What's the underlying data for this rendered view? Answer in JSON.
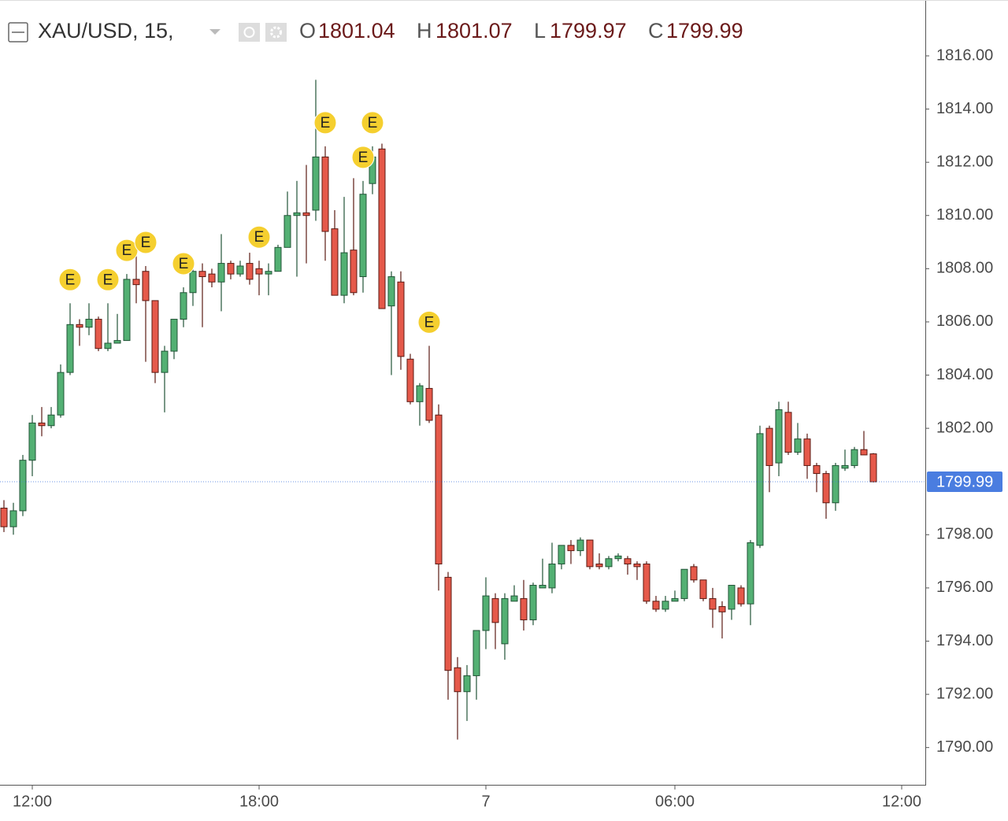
{
  "header": {
    "symbol": "XAU/USD, 15,",
    "ohlc_labels": [
      "O",
      "H",
      "L",
      "C"
    ]
  },
  "chart_data": {
    "type": "candlestick",
    "categories": [
      null,
      null,
      null,
      "12:00",
      null,
      null,
      null,
      null,
      null,
      null,
      null,
      null,
      null,
      null,
      null,
      null,
      null,
      null,
      null,
      null,
      null,
      null,
      null,
      null,
      null,
      null,
      null,
      "18:00",
      null,
      null,
      null,
      null,
      null,
      null,
      null,
      null,
      null,
      null,
      null,
      null,
      null,
      null,
      null,
      null,
      null,
      null,
      null,
      null,
      null,
      null,
      null,
      "7",
      null,
      null,
      null,
      null,
      null,
      null,
      null,
      null,
      null,
      null,
      null,
      null,
      null,
      null,
      null,
      null,
      null,
      null,
      null,
      "06:00",
      null,
      null,
      null,
      null,
      null,
      null,
      null,
      null,
      null,
      null,
      null,
      null,
      null,
      null,
      null,
      null,
      null,
      null,
      null,
      null,
      null,
      null,
      null,
      "12:00"
    ],
    "open": [
      1799.0,
      1798.3,
      1798.9,
      1800.8,
      1802.2,
      1802.1,
      1802.5,
      1804.1,
      1805.9,
      1805.8,
      1806.1,
      1805.0,
      1805.2,
      1805.3,
      1807.6,
      1807.9,
      1806.8,
      1804.1,
      1804.9,
      1806.1,
      1807.1,
      1807.9,
      1807.8,
      1807.5,
      1808.2,
      1807.8,
      1808.2,
      1808.0,
      1807.8,
      1807.9,
      1808.8,
      1810.0,
      1810.1,
      1810.2,
      1812.2,
      1809.5,
      1807.0,
      1808.7,
      1807.7,
      1811.2,
      1812.5,
      1806.6,
      1807.5,
      1804.6,
      1803.0,
      1803.5,
      1802.5,
      1796.4,
      1793.0,
      1792.1,
      1792.7,
      1794.4,
      1795.6,
      1793.9,
      1795.5,
      1795.6,
      1794.8,
      1796.0,
      1796.0,
      1796.9,
      1797.6,
      1797.4,
      1797.8,
      1796.9,
      1796.8,
      1797.1,
      1797.1,
      1796.9,
      1796.9,
      1795.5,
      1795.2,
      1795.5,
      1795.6,
      1796.8,
      1796.3,
      1795.6,
      1795.3,
      1795.2,
      1796.0,
      1795.4,
      1797.6,
      1802.0,
      1800.7,
      1802.6,
      1801.1,
      1801.6,
      1800.6,
      1800.3,
      1799.2,
      1800.5,
      1800.6,
      1801.2,
      1801.04,
      null,
      null,
      null
    ],
    "high": [
      1799.3,
      1799.2,
      1801.0,
      1802.5,
      1802.8,
      1802.8,
      1804.4,
      1806.7,
      1806.1,
      1806.7,
      1806.2,
      1806.7,
      1806.3,
      1807.8,
      1808.8,
      1808.1,
      1806.8,
      1805.1,
      1806.1,
      1807.3,
      1808.2,
      1808.2,
      1808.0,
      1809.3,
      1808.3,
      1808.3,
      1808.6,
      1808.3,
      1808.2,
      1808.9,
      1810.9,
      1811.3,
      1811.9,
      1815.1,
      1812.6,
      1810.2,
      1810.7,
      1811.4,
      1811.3,
      1812.6,
      1812.7,
      1807.9,
      1807.9,
      1804.8,
      1803.7,
      1805.1,
      1802.9,
      1796.6,
      1793.4,
      1793.1,
      1794.4,
      1796.4,
      1795.8,
      1795.8,
      1796.1,
      1796.3,
      1796.2,
      1797.1,
      1797.7,
      1797.6,
      1797.8,
      1797.9,
      1797.8,
      1797.3,
      1797.2,
      1797.3,
      1797.2,
      1797.0,
      1797.0,
      1795.7,
      1795.7,
      1795.9,
      1796.7,
      1796.9,
      1796.3,
      1796.0,
      1795.5,
      1796.1,
      1796.1,
      1797.8,
      1802.1,
      1802.1,
      1803.0,
      1803.0,
      1802.2,
      1801.8,
      1800.7,
      1800.4,
      1800.7,
      1801.2,
      1801.3,
      1801.9,
      1801.07,
      null,
      null,
      null
    ],
    "low": [
      1798.1,
      1798.0,
      1798.7,
      1800.2,
      1801.7,
      1802.0,
      1802.4,
      1804.0,
      1805.1,
      1805.5,
      1804.9,
      1804.9,
      1805.2,
      1805.3,
      1806.7,
      1804.5,
      1803.7,
      1802.6,
      1804.6,
      1805.8,
      1806.6,
      1805.8,
      1807.3,
      1806.4,
      1807.6,
      1807.7,
      1807.4,
      1807.0,
      1807.0,
      1807.9,
      1808.8,
      1807.7,
      1808.2,
      1809.8,
      1808.3,
      1807.0,
      1806.7,
      1807.0,
      1807.1,
      1810.8,
      1806.5,
      1804.0,
      1804.2,
      1802.9,
      1802.1,
      1802.2,
      1795.9,
      1791.8,
      1790.3,
      1791.0,
      1791.8,
      1793.7,
      1793.7,
      1793.3,
      1795.5,
      1794.4,
      1794.6,
      1796.0,
      1795.8,
      1796.7,
      1796.9,
      1797.2,
      1796.7,
      1796.7,
      1796.7,
      1797.0,
      1796.5,
      1796.3,
      1795.4,
      1795.1,
      1795.1,
      1795.5,
      1795.5,
      1796.2,
      1795.5,
      1794.5,
      1794.1,
      1794.8,
      1795.3,
      1794.6,
      1797.5,
      1799.6,
      1800.2,
      1801.0,
      1801.0,
      1800.1,
      1799.6,
      1798.6,
      1798.9,
      1800.4,
      1800.5,
      1801.0,
      1799.97,
      null,
      null,
      null
    ],
    "close": [
      1798.3,
      1798.9,
      1800.8,
      1802.2,
      1802.1,
      1802.5,
      1804.1,
      1805.9,
      1805.8,
      1806.1,
      1805.0,
      1805.2,
      1805.3,
      1807.6,
      1807.4,
      1806.8,
      1804.1,
      1804.9,
      1806.1,
      1807.1,
      1807.9,
      1807.7,
      1807.5,
      1808.2,
      1807.8,
      1808.1,
      1807.6,
      1807.8,
      1807.9,
      1808.8,
      1810.0,
      1810.1,
      1810.0,
      1812.2,
      1809.4,
      1807.0,
      1808.6,
      1807.1,
      1810.8,
      1812.2,
      1806.5,
      1807.7,
      1804.7,
      1803.0,
      1803.6,
      1802.3,
      1796.9,
      1792.9,
      1792.1,
      1792.7,
      1794.4,
      1795.7,
      1794.7,
      1795.6,
      1795.7,
      1794.8,
      1796.1,
      1796.1,
      1796.9,
      1797.6,
      1797.4,
      1797.8,
      1796.8,
      1796.8,
      1797.1,
      1797.2,
      1796.9,
      1796.8,
      1795.5,
      1795.2,
      1795.5,
      1795.6,
      1796.7,
      1796.3,
      1795.6,
      1795.2,
      1795.1,
      1796.1,
      1795.4,
      1797.7,
      1801.8,
      1800.6,
      1802.7,
      1801.1,
      1801.6,
      1800.6,
      1800.3,
      1799.2,
      1800.6,
      1800.6,
      1801.2,
      1801.0,
      1799.99,
      null,
      null,
      null
    ],
    "events": [
      null,
      null,
      null,
      null,
      null,
      null,
      null,
      "E",
      null,
      null,
      null,
      "E",
      null,
      "E",
      null,
      "E",
      null,
      null,
      null,
      "E",
      null,
      null,
      null,
      null,
      null,
      null,
      null,
      "E",
      null,
      null,
      null,
      null,
      null,
      null,
      "E",
      null,
      null,
      null,
      "E",
      "E",
      null,
      null,
      null,
      null,
      null,
      "E",
      null,
      null,
      null,
      null,
      null,
      null,
      null,
      null,
      null,
      null,
      null,
      null,
      null,
      null,
      null,
      null,
      null,
      null,
      null,
      null,
      null,
      null,
      null,
      null,
      null,
      null,
      null,
      null,
      null,
      null,
      null,
      null,
      null,
      null,
      null,
      null,
      null,
      null,
      null,
      null,
      null,
      null,
      null,
      null,
      null,
      null,
      null,
      null,
      null,
      null
    ],
    "up_color": "#53b073",
    "up_border": "#225437",
    "down_color": "#e5594a",
    "down_border": "#5b1a13",
    "last_price_color": "#4a7de0",
    "ylim": [
      1788.6,
      1818.1
    ],
    "yticks": [
      {
        "value": 1790,
        "label": "1790.00"
      },
      {
        "value": 1792,
        "label": "1792.00"
      },
      {
        "value": 1794,
        "label": "1794.00"
      },
      {
        "value": 1796,
        "label": "1796.00"
      },
      {
        "value": 1798,
        "label": "1798.00"
      },
      {
        "value": 1802,
        "label": "1802.00"
      },
      {
        "value": 1804,
        "label": "1804.00"
      },
      {
        "value": 1806,
        "label": "1806.00"
      },
      {
        "value": 1808,
        "label": "1808.00"
      },
      {
        "value": 1810,
        "label": "1810.00"
      },
      {
        "value": 1812,
        "label": "1812.00"
      },
      {
        "value": 1814,
        "label": "1814.00"
      },
      {
        "value": 1816,
        "label": "1816.00"
      }
    ]
  }
}
